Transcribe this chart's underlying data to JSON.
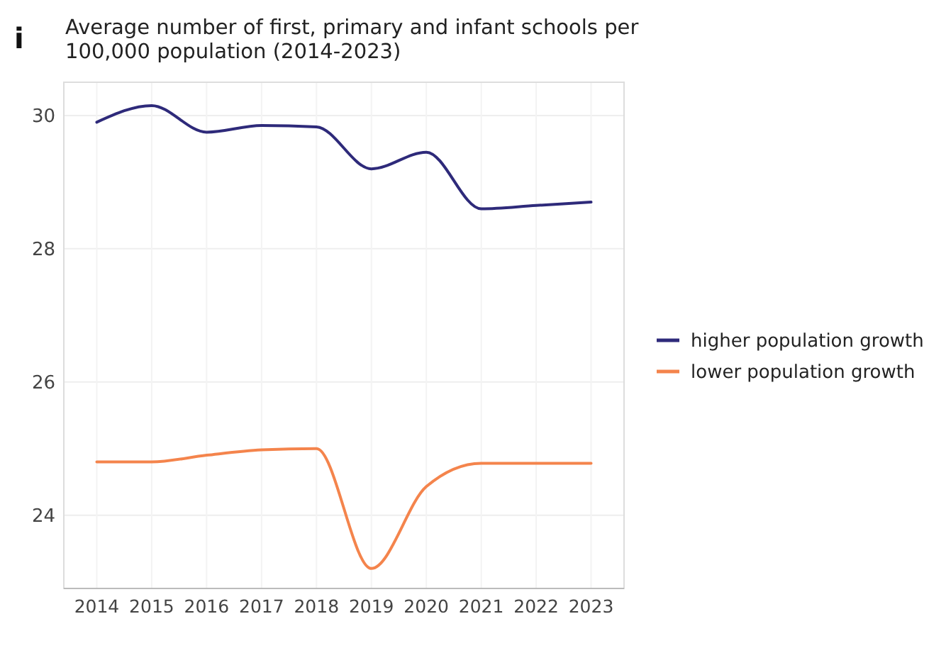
{
  "chart_data": {
    "type": "line",
    "title": "Average number of first, primary and infant schools per 100,000 population (2014-2023)",
    "annotations": [
      "i"
    ],
    "x": [
      2014,
      2015,
      2016,
      2017,
      2018,
      2019,
      2020,
      2021,
      2022,
      2023
    ],
    "series": [
      {
        "name": "higher population growth",
        "color": "#2e2a7a",
        "values": [
          29.9,
          30.15,
          29.75,
          29.85,
          29.83,
          29.2,
          29.45,
          28.6,
          28.65,
          28.7
        ]
      },
      {
        "name": "lower population growth",
        "color": "#f4844c",
        "values": [
          24.8,
          24.8,
          24.9,
          24.98,
          25.0,
          23.2,
          24.43,
          24.78,
          24.78,
          24.78
        ]
      }
    ],
    "xlim": [
      2013.4,
      2023.6
    ],
    "xticks": [
      2014,
      2015,
      2016,
      2017,
      2018,
      2019,
      2020,
      2021,
      2022,
      2023
    ],
    "ylim": [
      22.9,
      30.5
    ],
    "yticks": [
      24,
      26,
      28,
      30
    ],
    "grid": true,
    "legend": "right",
    "marker": "none",
    "line_style": "solid"
  }
}
